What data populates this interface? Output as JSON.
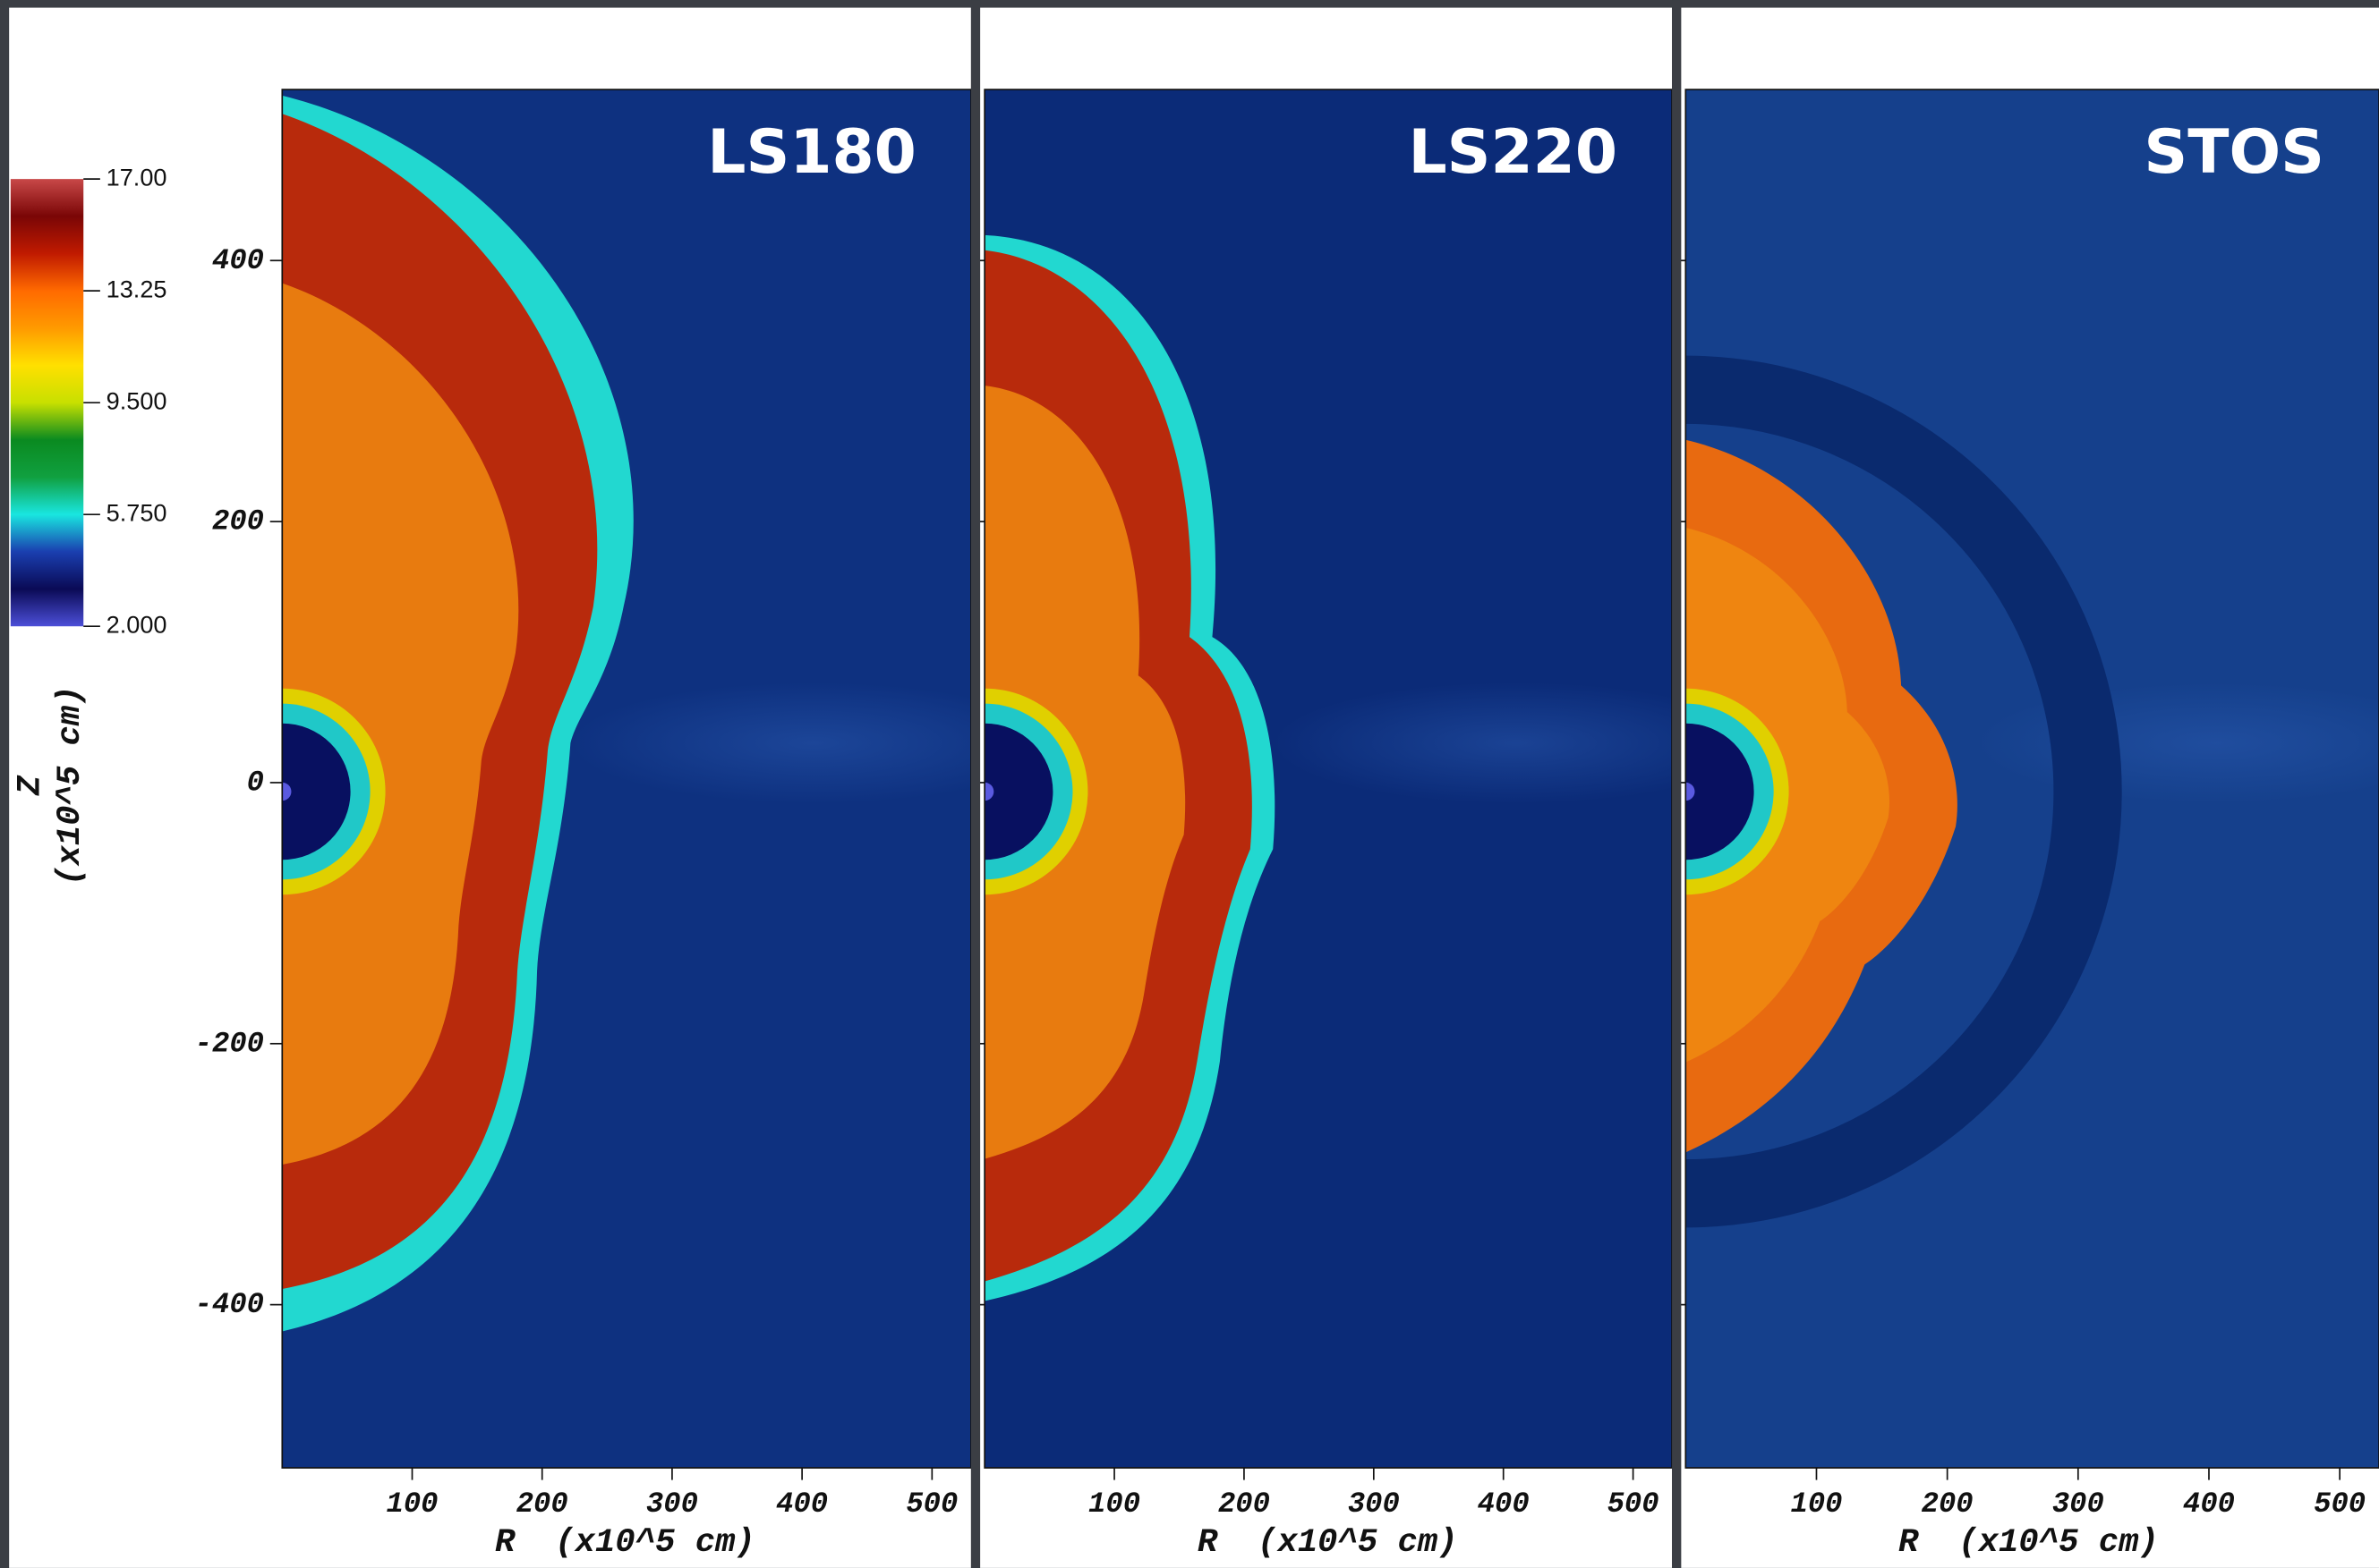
{
  "chart_data": [
    {
      "type": "heatmap",
      "title": "LS180",
      "xlabel": "R  (x10^5 cm)",
      "ylabel": [
        "Z",
        "(x10^5 cm)"
      ],
      "xlim": [
        0,
        530
      ],
      "xticks": [
        100,
        200,
        300,
        400,
        500
      ],
      "ylim": [
        -525,
        531
      ],
      "yticks": [
        -400,
        -200,
        0,
        200,
        400
      ],
      "colorbar": {
        "lim": [
          2,
          17
        ],
        "ticks": [
          {
            "value": 17,
            "label": "17.00"
          },
          {
            "value": 13.25,
            "label": "13.25"
          },
          {
            "value": 9.5,
            "label": "9.500"
          },
          {
            "value": 5.75,
            "label": "5.750"
          },
          {
            "value": 2,
            "label": "2.000"
          }
        ],
        "colormap": [
          "#4c4fd8",
          "#0a0a55",
          "#1a3fb0",
          "#19e6e0",
          "#10a040",
          "#0a8a20",
          "#c8e000",
          "#ffe000",
          "#ff9a00",
          "#ff6a00",
          "#c01a00",
          "#7a0606",
          "#c84848"
        ]
      }
    },
    {
      "type": "heatmap",
      "title": "LS220",
      "xlabel": "R  (x10^5 cm)",
      "xlim": [
        0,
        530
      ],
      "xticks": [
        100,
        200,
        300,
        400,
        500
      ]
    },
    {
      "type": "heatmap",
      "title": "STOS",
      "xlabel": "R  (x10^5 cm)",
      "xlim": [
        0,
        530
      ],
      "xticks": [
        100,
        200,
        300,
        400,
        500
      ]
    }
  ]
}
